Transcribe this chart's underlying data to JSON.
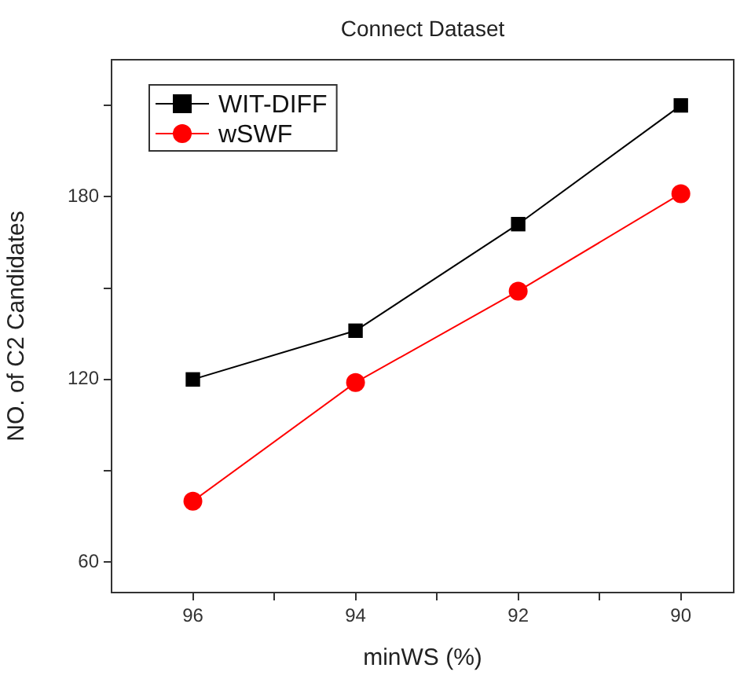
{
  "chart_data": {
    "type": "line",
    "title": "Connect Dataset",
    "xlabel": "minWS (%)",
    "ylabel": "NO. of C2 Candidates",
    "x": [
      96,
      94,
      92,
      90
    ],
    "series": [
      {
        "name": "WIT-DIFF",
        "color": "#000000",
        "values": [
          120,
          136,
          171,
          210
        ],
        "marker": "square"
      },
      {
        "name": "wSWF",
        "color": "#ff0000",
        "values": [
          80,
          119,
          149,
          181
        ],
        "marker": "circle"
      }
    ],
    "xlim": [
      97,
      89.35
    ],
    "xticks": [
      96,
      {
        "value": 95,
        "label": null
      },
      94,
      {
        "value": 93,
        "label": null
      },
      92,
      {
        "value": 91,
        "label": null
      },
      90
    ],
    "ylim": [
      50,
      225
    ],
    "yticks": [
      60,
      {
        "value": 90,
        "label": null
      },
      120,
      {
        "value": 150,
        "label": null
      },
      180,
      {
        "value": 210,
        "label": null
      }
    ],
    "grid": false,
    "legend": "top left"
  }
}
